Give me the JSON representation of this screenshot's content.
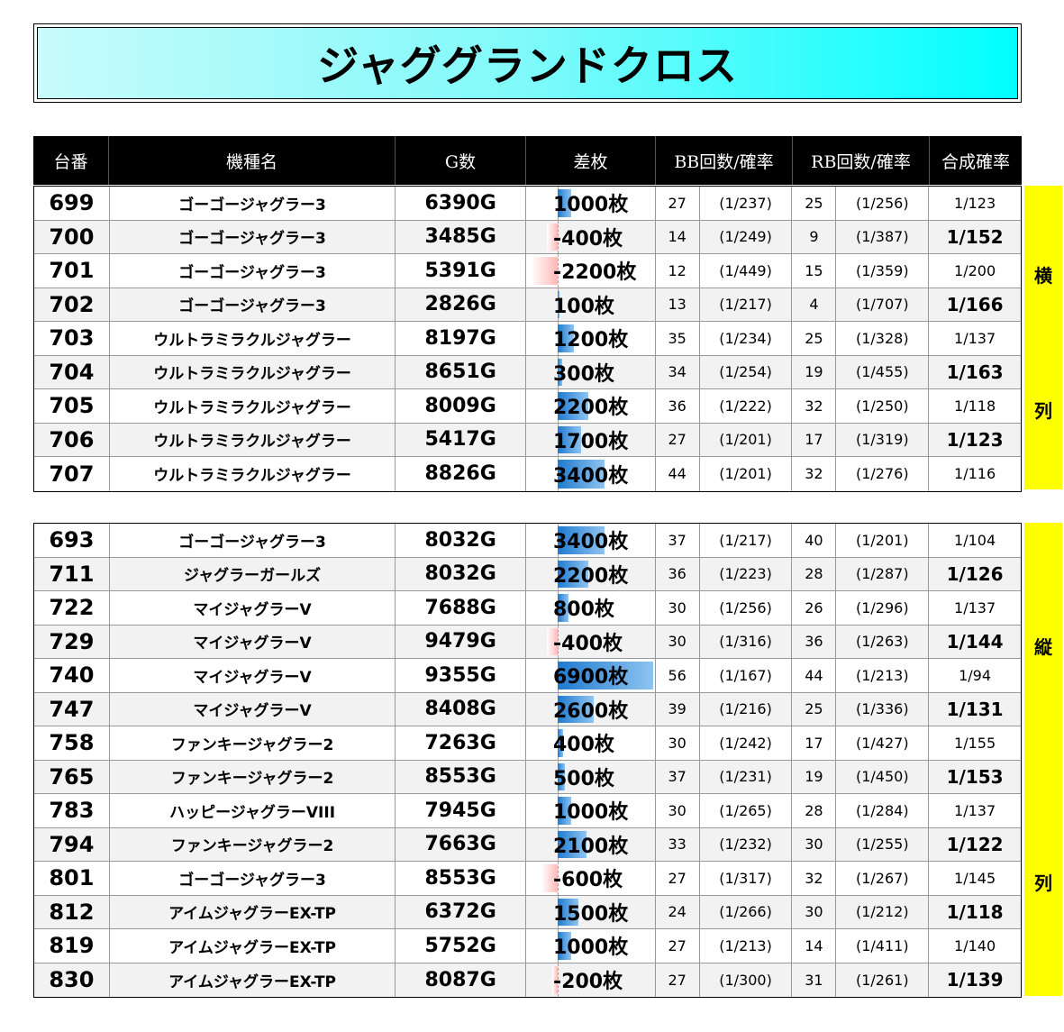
{
  "title": "ジャググランドクロス",
  "headers": [
    "台番",
    "機種名",
    "G数",
    "差枚",
    "BB回数/確率",
    "RB回数/確率",
    "合成確率"
  ],
  "side_top": {
    "upper": "横",
    "lower": "列"
  },
  "side_bottom": {
    "upper": "縦",
    "lower": "列"
  },
  "diff_scale_max": 6900,
  "table_top": [
    {
      "num": "699",
      "name": "ゴーゴージャグラー3",
      "games": "6390G",
      "diff": "1000枚",
      "diff_value": 1000,
      "bb": "27",
      "bb_prob": "(1/237)",
      "rb": "25",
      "rb_prob": "(1/256)",
      "sum": "1/123",
      "sum_big": false
    },
    {
      "num": "700",
      "name": "ゴーゴージャグラー3",
      "games": "3485G",
      "diff": "-400枚",
      "diff_value": -400,
      "bb": "14",
      "bb_prob": "(1/249)",
      "rb": "9",
      "rb_prob": "(1/387)",
      "sum": "1/152",
      "sum_big": true
    },
    {
      "num": "701",
      "name": "ゴーゴージャグラー3",
      "games": "5391G",
      "diff": "-2200枚",
      "diff_value": -2200,
      "bb": "12",
      "bb_prob": "(1/449)",
      "rb": "15",
      "rb_prob": "(1/359)",
      "sum": "1/200",
      "sum_big": false
    },
    {
      "num": "702",
      "name": "ゴーゴージャグラー3",
      "games": "2826G",
      "diff": "100枚",
      "diff_value": 100,
      "bb": "13",
      "bb_prob": "(1/217)",
      "rb": "4",
      "rb_prob": "(1/707)",
      "sum": "1/166",
      "sum_big": true
    },
    {
      "num": "703",
      "name": "ウルトラミラクルジャグラー",
      "games": "8197G",
      "diff": "1200枚",
      "diff_value": 1200,
      "bb": "35",
      "bb_prob": "(1/234)",
      "rb": "25",
      "rb_prob": "(1/328)",
      "sum": "1/137",
      "sum_big": false
    },
    {
      "num": "704",
      "name": "ウルトラミラクルジャグラー",
      "games": "8651G",
      "diff": "300枚",
      "diff_value": 300,
      "bb": "34",
      "bb_prob": "(1/254)",
      "rb": "19",
      "rb_prob": "(1/455)",
      "sum": "1/163",
      "sum_big": true
    },
    {
      "num": "705",
      "name": "ウルトラミラクルジャグラー",
      "games": "8009G",
      "diff": "2200枚",
      "diff_value": 2200,
      "bb": "36",
      "bb_prob": "(1/222)",
      "rb": "32",
      "rb_prob": "(1/250)",
      "sum": "1/118",
      "sum_big": false
    },
    {
      "num": "706",
      "name": "ウルトラミラクルジャグラー",
      "games": "5417G",
      "diff": "1700枚",
      "diff_value": 1700,
      "bb": "27",
      "bb_prob": "(1/201)",
      "rb": "17",
      "rb_prob": "(1/319)",
      "sum": "1/123",
      "sum_big": true
    },
    {
      "num": "707",
      "name": "ウルトラミラクルジャグラー",
      "games": "8826G",
      "diff": "3400枚",
      "diff_value": 3400,
      "bb": "44",
      "bb_prob": "(1/201)",
      "rb": "32",
      "rb_prob": "(1/276)",
      "sum": "1/116",
      "sum_big": false
    }
  ],
  "table_bottom": [
    {
      "num": "693",
      "name": "ゴーゴージャグラー3",
      "games": "8032G",
      "diff": "3400枚",
      "diff_value": 3400,
      "bb": "37",
      "bb_prob": "(1/217)",
      "rb": "40",
      "rb_prob": "(1/201)",
      "sum": "1/104",
      "sum_big": false
    },
    {
      "num": "711",
      "name": "ジャグラーガールズ",
      "games": "8032G",
      "diff": "2200枚",
      "diff_value": 2200,
      "bb": "36",
      "bb_prob": "(1/223)",
      "rb": "28",
      "rb_prob": "(1/287)",
      "sum": "1/126",
      "sum_big": true
    },
    {
      "num": "722",
      "name": "マイジャグラーV",
      "games": "7688G",
      "diff": "800枚",
      "diff_value": 800,
      "bb": "30",
      "bb_prob": "(1/256)",
      "rb": "26",
      "rb_prob": "(1/296)",
      "sum": "1/137",
      "sum_big": false
    },
    {
      "num": "729",
      "name": "マイジャグラーV",
      "games": "9479G",
      "diff": "-400枚",
      "diff_value": -400,
      "bb": "30",
      "bb_prob": "(1/316)",
      "rb": "36",
      "rb_prob": "(1/263)",
      "sum": "1/144",
      "sum_big": true
    },
    {
      "num": "740",
      "name": "マイジャグラーV",
      "games": "9355G",
      "diff": "6900枚",
      "diff_value": 6900,
      "bb": "56",
      "bb_prob": "(1/167)",
      "rb": "44",
      "rb_prob": "(1/213)",
      "sum": "1/94",
      "sum_big": false
    },
    {
      "num": "747",
      "name": "マイジャグラーV",
      "games": "8408G",
      "diff": "2600枚",
      "diff_value": 2600,
      "bb": "39",
      "bb_prob": "(1/216)",
      "rb": "25",
      "rb_prob": "(1/336)",
      "sum": "1/131",
      "sum_big": true
    },
    {
      "num": "758",
      "name": "ファンキージャグラー2",
      "games": "7263G",
      "diff": "400枚",
      "diff_value": 400,
      "bb": "30",
      "bb_prob": "(1/242)",
      "rb": "17",
      "rb_prob": "(1/427)",
      "sum": "1/155",
      "sum_big": false
    },
    {
      "num": "765",
      "name": "ファンキージャグラー2",
      "games": "8553G",
      "diff": "500枚",
      "diff_value": 500,
      "bb": "37",
      "bb_prob": "(1/231)",
      "rb": "19",
      "rb_prob": "(1/450)",
      "sum": "1/153",
      "sum_big": true
    },
    {
      "num": "783",
      "name": "ハッピージャグラーVIII",
      "games": "7945G",
      "diff": "1000枚",
      "diff_value": 1000,
      "bb": "30",
      "bb_prob": "(1/265)",
      "rb": "28",
      "rb_prob": "(1/284)",
      "sum": "1/137",
      "sum_big": false
    },
    {
      "num": "794",
      "name": "ファンキージャグラー2",
      "games": "7663G",
      "diff": "2100枚",
      "diff_value": 2100,
      "bb": "33",
      "bb_prob": "(1/232)",
      "rb": "30",
      "rb_prob": "(1/255)",
      "sum": "1/122",
      "sum_big": true
    },
    {
      "num": "801",
      "name": "ゴーゴージャグラー3",
      "games": "8553G",
      "diff": "-600枚",
      "diff_value": -600,
      "bb": "27",
      "bb_prob": "(1/317)",
      "rb": "32",
      "rb_prob": "(1/267)",
      "sum": "1/145",
      "sum_big": false
    },
    {
      "num": "812",
      "name": "アイムジャグラーEX-TP",
      "games": "6372G",
      "diff": "1500枚",
      "diff_value": 1500,
      "bb": "24",
      "bb_prob": "(1/266)",
      "rb": "30",
      "rb_prob": "(1/212)",
      "sum": "1/118",
      "sum_big": true
    },
    {
      "num": "819",
      "name": "アイムジャグラーEX-TP",
      "games": "5752G",
      "diff": "1000枚",
      "diff_value": 1000,
      "bb": "27",
      "bb_prob": "(1/213)",
      "rb": "14",
      "rb_prob": "(1/411)",
      "sum": "1/140",
      "sum_big": false
    },
    {
      "num": "830",
      "name": "アイムジャグラーEX-TP",
      "games": "8087G",
      "diff": "-200枚",
      "diff_value": -200,
      "bb": "27",
      "bb_prob": "(1/300)",
      "rb": "31",
      "rb_prob": "(1/261)",
      "sum": "1/139",
      "sum_big": true
    }
  ]
}
